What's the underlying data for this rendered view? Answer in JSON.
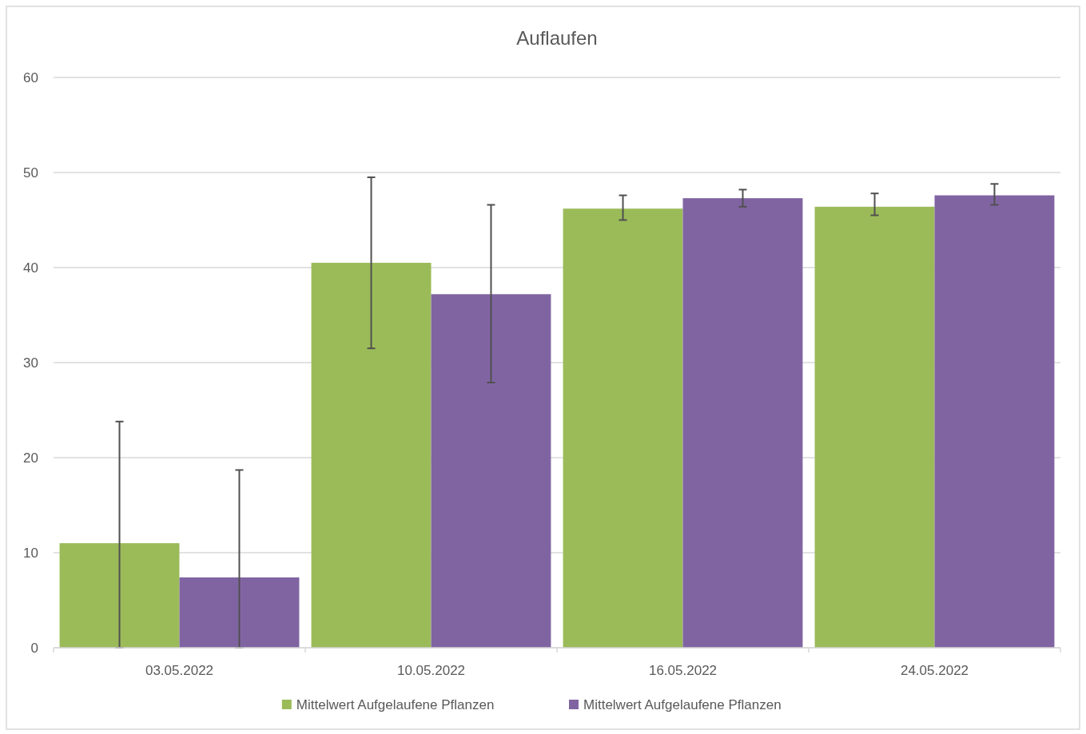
{
  "chart_data": {
    "type": "bar",
    "title": "Auflaufen",
    "categories": [
      "03.05.2022",
      "10.05.2022",
      "16.05.2022",
      "24.05.2022"
    ],
    "series": [
      {
        "name": "Mittelwert Aufgelaufene Pflanzen",
        "color": "#9bbb59",
        "values": [
          11.0,
          40.5,
          46.2,
          46.4
        ],
        "errors": [
          [
            0,
            23.8
          ],
          [
            31.5,
            49.5
          ],
          [
            45.0,
            47.6
          ],
          [
            45.5,
            47.8
          ]
        ]
      },
      {
        "name": "Mittelwert Aufgelaufene Pflanzen",
        "color": "#8064a2",
        "values": [
          7.4,
          37.2,
          47.3,
          47.6
        ],
        "errors": [
          [
            0,
            18.7
          ],
          [
            27.9,
            46.6
          ],
          [
            46.4,
            48.2
          ],
          [
            46.6,
            48.8
          ]
        ]
      }
    ],
    "ylim": [
      0,
      60
    ],
    "yticks": [
      0,
      10,
      20,
      30,
      40,
      50,
      60
    ],
    "grid": "y",
    "legend": "bottom"
  }
}
